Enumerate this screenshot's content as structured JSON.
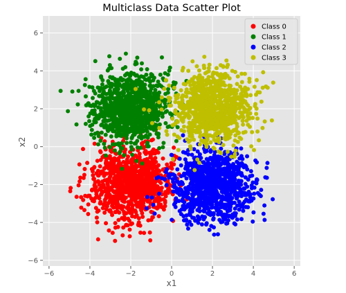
{
  "chart_data": {
    "type": "scatter",
    "title": "Multiclass Data Scatter Plot",
    "xlabel": "x1",
    "ylabel": "x2",
    "xlim": [
      -6.3,
      6.3
    ],
    "ylim": [
      -6.3,
      6.9
    ],
    "xticks": [
      -6,
      -4,
      -2,
      0,
      2,
      4,
      6
    ],
    "yticks": [
      -6,
      -4,
      -2,
      0,
      2,
      4,
      6
    ],
    "xtick_labels": [
      "−6",
      "−4",
      "−2",
      "0",
      "2",
      "4",
      "6"
    ],
    "ytick_labels": [
      "−6",
      "−4",
      "−2",
      "0",
      "2",
      "4",
      "6"
    ],
    "grid": true,
    "legend_position": "top-right",
    "background_color": "#e5e5e5",
    "grid_color": "#ffffff",
    "series": [
      {
        "name": "Class 0",
        "color": "#ff0000",
        "center": [
          -2,
          -2
        ],
        "spread": 0.95,
        "count": 1000
      },
      {
        "name": "Class 1",
        "color": "#008000",
        "center": [
          -2,
          2
        ],
        "spread": 0.95,
        "count": 1000
      },
      {
        "name": "Class 2",
        "color": "#0000ff",
        "center": [
          2,
          -2
        ],
        "spread": 0.95,
        "count": 1000
      },
      {
        "name": "Class 3",
        "color": "#bfbf00",
        "center": [
          2,
          2
        ],
        "spread": 0.95,
        "count": 1000
      }
    ]
  }
}
